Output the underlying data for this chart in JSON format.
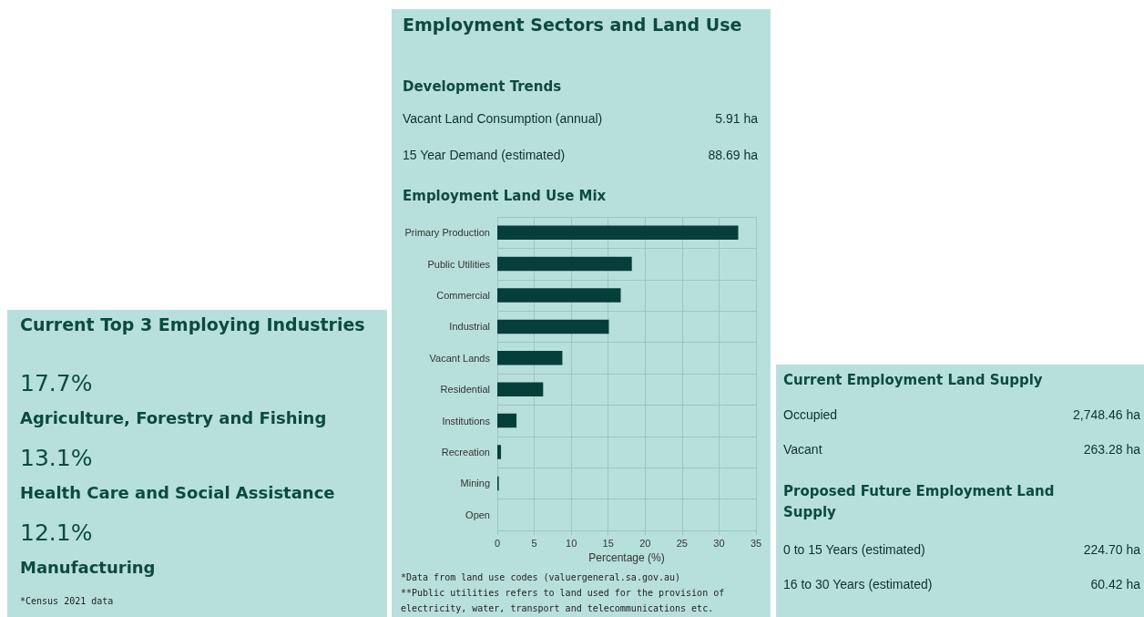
{
  "chart_data": [
    {
      "type": "other",
      "title": "Current Top 3 Employing Industries",
      "annotations": [
        "17.7%",
        "Agriculture, Forestry and Fishing",
        "13.1%",
        "Health Care and Social Assistance",
        "12.1%",
        "Manufacturing",
        "*Census 2021 data"
      ]
    },
    {
      "type": "bar",
      "orientation": "horizontal",
      "title": "Employment Sectors and Land Use",
      "subtitle": "Employment Land Use Mix",
      "xlabel": "Percentage (%)",
      "categories": [
        "Primary Production",
        "Public Utilities",
        "Commercial",
        "Industrial",
        "Vacant Lands",
        "Residential",
        "Institutions",
        "Recreation",
        "Mining",
        "Open"
      ],
      "values": [
        32.6,
        18.2,
        16.7,
        15.1,
        8.8,
        6.2,
        2.6,
        0.5,
        0.2,
        0
      ],
      "color": "#063f3a",
      "xlim": [
        0,
        35
      ],
      "xticks": [
        0,
        5,
        10,
        15,
        20,
        25,
        30,
        35
      ],
      "grid": true,
      "annotations": [
        "Development Trends",
        "Vacant Land Consumption (annual)",
        "5.91 ha",
        "15 Year Demand (estimated)",
        "88.69 ha",
        "*Data from land use codes (valuergeneral.sa.gov.au)",
        "**Public utilities refers to land used for the provision of electricity, water, transport and telecommunications etc."
      ]
    },
    {
      "type": "other",
      "title": "Current Employment Land Supply",
      "annotations": [
        "Occupied",
        "2,748.46 ha",
        "Vacant",
        "263.28 ha",
        "Proposed Future Employment Land Supply",
        "0 to 15 Years (estimated)",
        "224.70 ha",
        "16 to 30 Years (estimated)",
        "60.42 ha"
      ]
    }
  ]
}
